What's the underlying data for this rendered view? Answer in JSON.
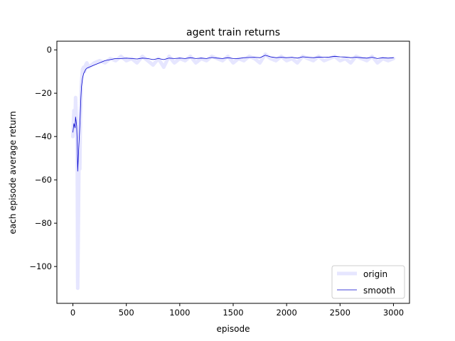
{
  "chart_data": {
    "type": "line",
    "title": "agent train returns",
    "xlabel": "episode",
    "ylabel": "each episode average return",
    "xlim": [
      -150,
      3150
    ],
    "ylim": [
      -117,
      4
    ],
    "x_ticks": [
      0,
      500,
      1000,
      1500,
      2000,
      2500,
      3000
    ],
    "y_ticks": [
      0,
      -20,
      -40,
      -60,
      -80,
      -100
    ],
    "x_tick_labels": [
      "0",
      "500",
      "1000",
      "1500",
      "2000",
      "2500",
      "3000"
    ],
    "y_tick_labels": [
      "0",
      "−20",
      "−40",
      "−60",
      "−80",
      "−100"
    ],
    "grid": false,
    "legend_position": "lower-right",
    "series": [
      {
        "name": "origin",
        "color": "#e6e6ff",
        "x": [
          0,
          10,
          20,
          25,
          30,
          35,
          40,
          45,
          50,
          55,
          60,
          65,
          70,
          75,
          80,
          90,
          100,
          110,
          120,
          130,
          150,
          175,
          200,
          250,
          300,
          350,
          400,
          450,
          500,
          550,
          600,
          650,
          700,
          750,
          800,
          850,
          900,
          950,
          1000,
          1050,
          1100,
          1150,
          1200,
          1250,
          1300,
          1350,
          1400,
          1450,
          1500,
          1550,
          1600,
          1650,
          1700,
          1750,
          1800,
          1850,
          1900,
          1950,
          2000,
          2050,
          2100,
          2150,
          2200,
          2250,
          2300,
          2350,
          2400,
          2450,
          2500,
          2550,
          2600,
          2650,
          2700,
          2750,
          2800,
          2850,
          2900,
          2950,
          3000
        ],
        "y": [
          -40,
          -28,
          -35,
          -22,
          -30,
          -33,
          -45,
          -110,
          -85,
          -60,
          -40,
          -55,
          -30,
          -22,
          -15,
          -9,
          -8,
          -10,
          -7,
          -6,
          -8,
          -7,
          -6,
          -5,
          -6,
          -4,
          -5,
          -3,
          -5,
          -4,
          -6,
          -3,
          -5,
          -7,
          -4,
          -8,
          -3,
          -6,
          -4,
          -5,
          -3,
          -6,
          -4,
          -5,
          -3,
          -4,
          -5,
          -3,
          -6,
          -4,
          -5,
          -3,
          -4,
          -6,
          -2,
          -4,
          -5,
          -3,
          -5,
          -4,
          -6,
          -3,
          -4,
          -5,
          -3,
          -5,
          -4,
          -3,
          -5,
          -4,
          -6,
          -3,
          -4,
          -5,
          -3,
          -6,
          -4,
          -5,
          -4
        ]
      },
      {
        "name": "smooth",
        "color": "#0000cd",
        "x": [
          0,
          10,
          20,
          25,
          30,
          35,
          40,
          45,
          50,
          55,
          60,
          65,
          70,
          75,
          80,
          90,
          100,
          110,
          120,
          130,
          150,
          175,
          200,
          250,
          300,
          350,
          400,
          450,
          500,
          550,
          600,
          650,
          700,
          750,
          800,
          850,
          900,
          950,
          1000,
          1050,
          1100,
          1150,
          1200,
          1250,
          1300,
          1350,
          1400,
          1450,
          1500,
          1550,
          1600,
          1650,
          1700,
          1750,
          1800,
          1850,
          1900,
          1950,
          2000,
          2050,
          2100,
          2150,
          2200,
          2250,
          2300,
          2350,
          2400,
          2450,
          2500,
          2550,
          2600,
          2650,
          2700,
          2750,
          2800,
          2850,
          2900,
          2950,
          3000
        ],
        "y": [
          -38,
          -34,
          -36,
          -31,
          -33,
          -35,
          -42,
          -56,
          -50,
          -45,
          -40,
          -35,
          -28,
          -22,
          -17,
          -13,
          -11,
          -10,
          -9,
          -8.5,
          -8,
          -7.5,
          -7,
          -6,
          -5,
          -4.5,
          -4,
          -4,
          -3.8,
          -4,
          -4.2,
          -3.8,
          -4,
          -4.5,
          -4,
          -4.5,
          -3.8,
          -4,
          -3.8,
          -4,
          -3.6,
          -4,
          -3.8,
          -4,
          -3.5,
          -3.8,
          -4,
          -3.6,
          -4,
          -4,
          -3.6,
          -3.5,
          -3.4,
          -3.6,
          -2.5,
          -3.2,
          -3.6,
          -3.4,
          -3.6,
          -3.4,
          -3.8,
          -3.2,
          -3.4,
          -3.6,
          -3.3,
          -3.4,
          -3.3,
          -3,
          -3.2,
          -3.3,
          -3.6,
          -3.4,
          -3.6,
          -3.8,
          -3.4,
          -4,
          -3.6,
          -3.8,
          -3.6
        ]
      }
    ]
  }
}
